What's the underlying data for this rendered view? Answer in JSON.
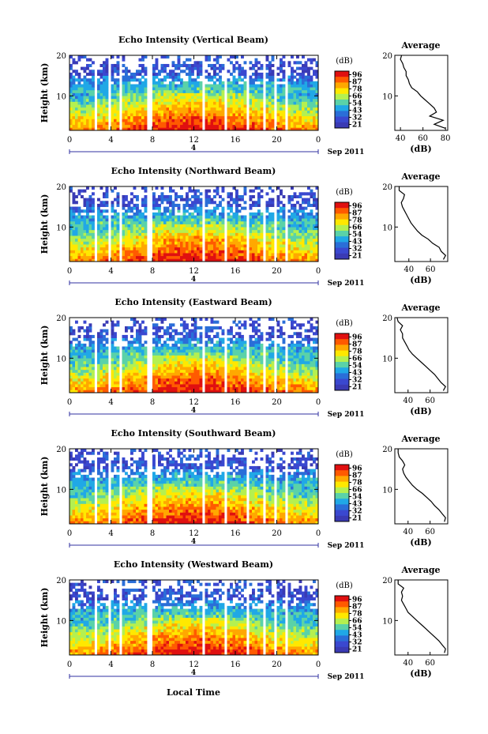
{
  "figure": {
    "x_axis_label": "Local Time",
    "date_label": "Sep 2011",
    "day_marker": "4",
    "y_axis_label": "Height (km)",
    "colorbar_unit": "(dB)",
    "colorbar_ticks": [
      "96",
      "87",
      "78",
      "66",
      "54",
      "43",
      "32",
      "21"
    ],
    "colorbar_colors": [
      "#e01010",
      "#ff5a00",
      "#ffa800",
      "#ffe800",
      "#b4f050",
      "#5ad2a8",
      "#20a8e6",
      "#2a6ed8",
      "#3a48d0",
      "#3a3ab4"
    ],
    "profile_title": "Average",
    "profile_xlabel": "(dB)",
    "blank_color": "#ffffff"
  },
  "chart_data": [
    {
      "type": "heatmap",
      "title": "Echo Intensity (Vertical Beam)",
      "xlabel": "",
      "ylabel": "Height (km)",
      "x_ticks": [
        "0",
        "4",
        "8",
        "12",
        "16",
        "20",
        "0"
      ],
      "y_ticks": [
        "20",
        "10"
      ],
      "xlim": [
        0,
        24
      ],
      "ylim": [
        1.5,
        20
      ],
      "profile": {
        "x_ticks": [
          "40",
          "60",
          "80"
        ],
        "xlim": [
          35,
          82
        ],
        "y_ticks": [
          "20",
          "10"
        ],
        "heights": [
          2.0,
          3.0,
          4.0,
          5.0,
          6.0,
          7.0,
          8.0,
          9.0,
          10.0,
          11.0,
          12.0,
          13.0,
          14.0,
          15.0,
          16.0,
          17.0,
          18.0,
          19.0,
          20.0
        ],
        "values": [
          80,
          70,
          78,
          66,
          72,
          70,
          66,
          62,
          58,
          55,
          50,
          48,
          47,
          45,
          45,
          43,
          42,
          40,
          41
        ]
      }
    },
    {
      "type": "heatmap",
      "title": "Echo Intensity (Northward Beam)",
      "xlabel": "",
      "ylabel": "Height (km)",
      "x_ticks": [
        "0",
        "4",
        "8",
        "12",
        "16",
        "20",
        "0"
      ],
      "y_ticks": [
        "20",
        "10"
      ],
      "xlim": [
        0,
        24
      ],
      "ylim": [
        1.5,
        20
      ],
      "profile": {
        "x_ticks": [
          "40",
          "60"
        ],
        "xlim": [
          27,
          76
        ],
        "y_ticks": [
          "20",
          "10"
        ],
        "heights": [
          2.0,
          3.0,
          4.0,
          5.0,
          6.0,
          7.0,
          8.0,
          9.0,
          10.0,
          11.0,
          12.0,
          13.0,
          14.0,
          15.0,
          16.0,
          17.0,
          18.0,
          19.0,
          20.0
        ],
        "values": [
          72,
          74,
          70,
          68,
          62,
          58,
          52,
          48,
          45,
          42,
          40,
          38,
          36,
          34,
          33,
          35,
          36,
          31,
          31
        ]
      }
    },
    {
      "type": "heatmap",
      "title": "Echo Intensity (Eastward Beam)",
      "xlabel": "",
      "ylabel": "Height (km)",
      "x_ticks": [
        "0",
        "4",
        "8",
        "12",
        "16",
        "20",
        "0"
      ],
      "y_ticks": [
        "20",
        "10"
      ],
      "xlim": [
        0,
        24
      ],
      "ylim": [
        1.5,
        20
      ],
      "profile": {
        "x_ticks": [
          "40",
          "60"
        ],
        "xlim": [
          28,
          76
        ],
        "y_ticks": [
          "20",
          "10"
        ],
        "heights": [
          2.0,
          3.0,
          4.0,
          5.0,
          6.0,
          7.0,
          8.0,
          9.0,
          10.0,
          11.0,
          12.0,
          13.0,
          14.0,
          15.0,
          16.0,
          17.0,
          18.0,
          19.0,
          20.0
        ],
        "values": [
          72,
          74,
          70,
          67,
          64,
          60,
          56,
          52,
          48,
          44,
          41,
          39,
          37,
          35,
          35,
          33,
          35,
          31,
          30
        ]
      }
    },
    {
      "type": "heatmap",
      "title": "Echo Intensity (Southward Beam)",
      "xlabel": "",
      "ylabel": "Height (km)",
      "x_ticks": [
        "0",
        "4",
        "8",
        "12",
        "16",
        "20",
        "0"
      ],
      "y_ticks": [
        "20",
        "10"
      ],
      "xlim": [
        0,
        24
      ],
      "ylim": [
        1.5,
        20
      ],
      "profile": {
        "x_ticks": [
          "40",
          "60"
        ],
        "xlim": [
          28,
          76
        ],
        "y_ticks": [
          "20",
          "10"
        ],
        "heights": [
          2.0,
          3.0,
          4.0,
          5.0,
          6.0,
          7.0,
          8.0,
          9.0,
          10.0,
          11.0,
          12.0,
          13.0,
          14.0,
          15.0,
          16.0,
          17.0,
          18.0,
          19.0,
          20.0
        ],
        "values": [
          73,
          74,
          71,
          68,
          64,
          61,
          57,
          53,
          48,
          44,
          41,
          38,
          36,
          35,
          37,
          35,
          32,
          31,
          31
        ]
      }
    },
    {
      "type": "heatmap",
      "title": "Echo Intensity (Westward Beam)",
      "xlabel": "Local Time",
      "ylabel": "Height (km)",
      "x_ticks": [
        "0",
        "4",
        "8",
        "12",
        "16",
        "20",
        "0"
      ],
      "y_ticks": [
        "20",
        "10"
      ],
      "xlim": [
        0,
        24
      ],
      "ylim": [
        1.5,
        20
      ],
      "profile": {
        "x_ticks": [
          "40",
          "60"
        ],
        "xlim": [
          28,
          76
        ],
        "y_ticks": [
          "20",
          "10"
        ],
        "heights": [
          2.0,
          3.0,
          4.0,
          5.0,
          6.0,
          7.0,
          8.0,
          9.0,
          10.0,
          11.0,
          12.0,
          13.0,
          14.0,
          15.0,
          16.0,
          17.0,
          18.0,
          19.0,
          20.0
        ],
        "values": [
          73,
          74,
          71,
          68,
          64,
          60,
          56,
          52,
          48,
          44,
          40,
          38,
          36,
          34,
          35,
          34,
          36,
          31,
          31
        ]
      }
    }
  ]
}
